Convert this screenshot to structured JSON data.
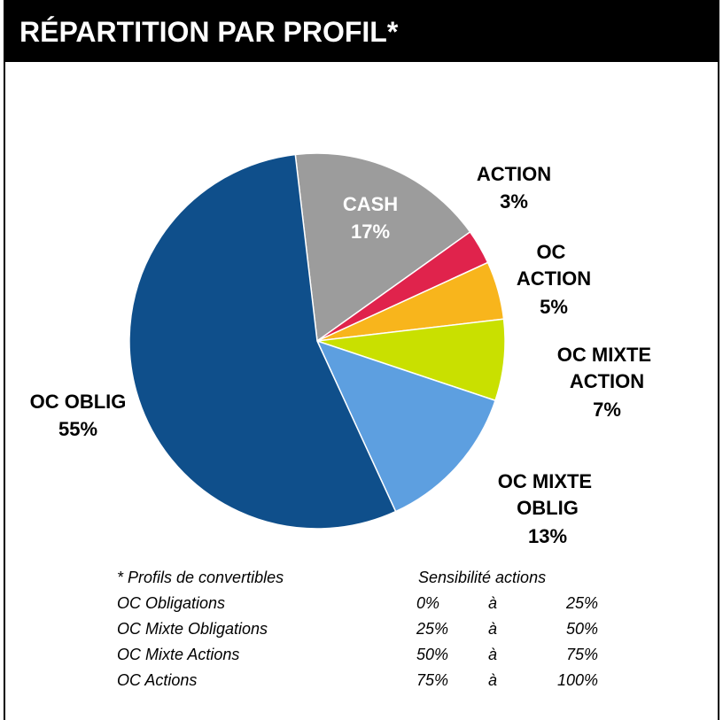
{
  "chart_data": {
    "type": "pie",
    "title": "RÉPARTITION PAR PROFIL*",
    "categories": [
      "CASH",
      "ACTION",
      "OC ACTION",
      "OC MIXTE ACTION",
      "OC MIXTE OBLIG",
      "OC OBLIG"
    ],
    "values": [
      17,
      3,
      5,
      7,
      13,
      55
    ],
    "value_labels": [
      "17%",
      "3%",
      "5%",
      "7%",
      "13%",
      "55%"
    ],
    "colors": [
      "#9c9c9c",
      "#e0234c",
      "#f8b51c",
      "#c9e000",
      "#5d9fe0",
      "#0f4f8b"
    ]
  },
  "footnote": {
    "header": [
      "* Profils de convertibles",
      "Sensibilité actions"
    ],
    "rows": [
      [
        "OC Obligations",
        "0%",
        "à",
        "25%"
      ],
      [
        "OC Mixte Obligations",
        "25%",
        "à",
        "50%"
      ],
      [
        "OC Mixte Actions",
        "50%",
        "à",
        "75%"
      ],
      [
        "OC Actions",
        "75%",
        "à",
        "100%"
      ]
    ]
  }
}
